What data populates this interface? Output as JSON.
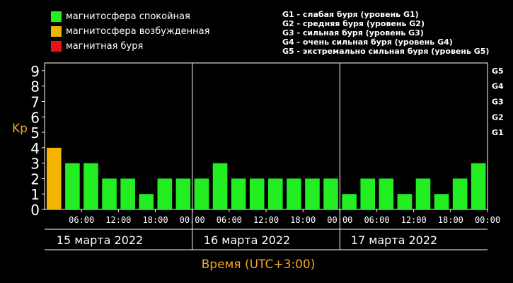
{
  "legend": [
    {
      "label": "магнитосфера спокойная",
      "color": "#22ee22"
    },
    {
      "label": "магнитосфера возбужденная",
      "color": "#e8b800"
    },
    {
      "label": "магнитная буря",
      "color": "#ee1111"
    }
  ],
  "storm_legend": [
    "G1 - слабая буря (уровень G1)",
    "G2 - средняя буря (уровень G2)",
    "G3 - сильная буря (уровень G3)",
    "G4 - очень сильная буря (уровень G4)",
    "G5 - экстремально сильная буря (уровень G5)"
  ],
  "chart_data": {
    "type": "bar",
    "ylabel": "Kp",
    "xlabel": "Время (UTC+3:00)",
    "ylim": [
      0,
      9
    ],
    "yticks": [
      "0",
      "1",
      "2",
      "3",
      "4",
      "5",
      "6",
      "7",
      "8",
      "9"
    ],
    "right_ticks": [
      {
        "label": "G1",
        "value": 5
      },
      {
        "label": "G2",
        "value": 6
      },
      {
        "label": "G3",
        "value": 7
      },
      {
        "label": "G4",
        "value": 8
      },
      {
        "label": "G5",
        "value": 9
      }
    ],
    "x_ticks": [
      "06:00",
      "12:00",
      "18:00",
      "00:00",
      "06:00",
      "12:00",
      "18:00",
      "00:00",
      "06:00",
      "12:00",
      "18:00",
      "00:00"
    ],
    "days": [
      "15 марта 2022",
      "16 марта 2022",
      "17 марта 2022"
    ],
    "values": [
      4,
      3,
      3,
      2,
      2,
      1,
      2,
      2,
      2,
      3,
      2,
      2,
      2,
      2,
      2,
      2,
      1,
      2,
      2,
      1,
      2,
      1,
      2,
      3
    ],
    "colors": {
      "calm": "#22ee22",
      "excited": "#f5b400",
      "storm": "#ee1111"
    }
  }
}
